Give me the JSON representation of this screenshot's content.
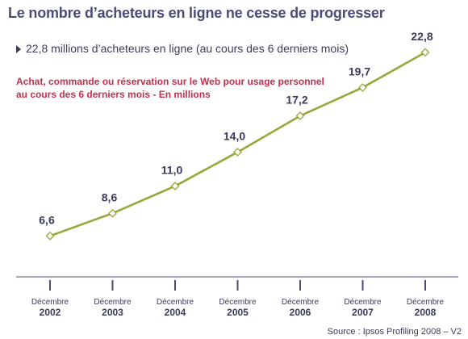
{
  "header": {
    "title": "Le nombre d’acheteurs en ligne ne cesse de progresser",
    "subtitle": "22,8 millions d’acheteurs en ligne (au cours des 6 derniers mois)"
  },
  "note": {
    "line1": "Achat, commande ou réservation sur le Web pour usage personnel",
    "line2": "au cours des 6 derniers mois - En millions"
  },
  "source": "Source : Ipsos Profiling 2008 – V2",
  "colors": {
    "line": "#9aa63a",
    "marker_fill": "#ffffff",
    "axis": "#4b4b78",
    "note": "#c4314b",
    "text": "#3b3b5c"
  },
  "chart_data": {
    "type": "line",
    "categories": [
      {
        "month": "Décembre",
        "year": "2002"
      },
      {
        "month": "Décembre",
        "year": "2003"
      },
      {
        "month": "Décembre",
        "year": "2004"
      },
      {
        "month": "Décembre",
        "year": "2005"
      },
      {
        "month": "Décembre",
        "year": "2006"
      },
      {
        "month": "Décembre",
        "year": "2007"
      },
      {
        "month": "Décembre",
        "year": "2008"
      }
    ],
    "values": [
      6.6,
      8.6,
      11.0,
      14.0,
      17.2,
      19.7,
      22.8
    ],
    "data_labels": [
      "6,6",
      "8,6",
      "11,0",
      "14,0",
      "17,2",
      "19,7",
      "22,8"
    ],
    "unit": "millions",
    "ylim": [
      0,
      25
    ],
    "grid": false,
    "legend": "none",
    "marker": "diamond"
  }
}
